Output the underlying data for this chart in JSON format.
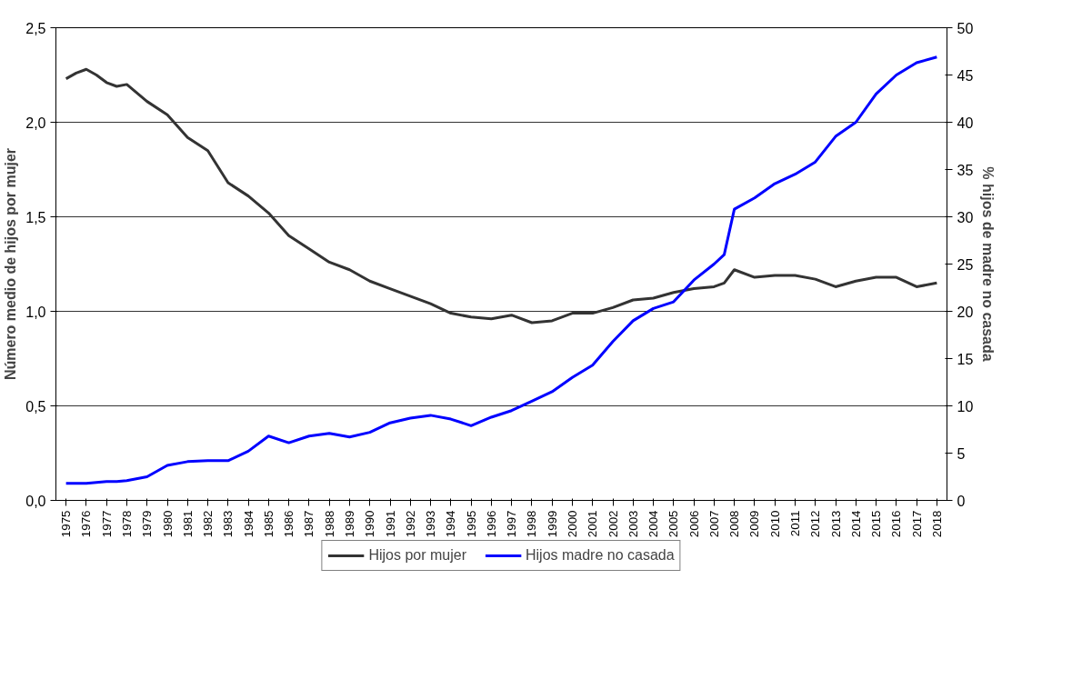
{
  "chart_data": {
    "type": "line",
    "ylabel": "Número medio de hijos por mujer",
    "y2label": "% hijos de madre no casada",
    "x": [
      1975,
      1975.5,
      1976,
      1976.5,
      1977,
      1977.5,
      1978,
      1979,
      1980,
      1981,
      1982,
      1983,
      1984,
      1985,
      1986,
      1987,
      1988,
      1989,
      1990,
      1991,
      1992,
      1993,
      1994,
      1995,
      1996,
      1997,
      1998,
      1999,
      2000,
      2001,
      2002,
      2003,
      2004,
      2005,
      2006,
      2007,
      2007.5,
      2008,
      2009,
      2010,
      2011,
      2012,
      2013,
      2014,
      2015,
      2016,
      2017,
      2018
    ],
    "series": [
      {
        "name": "Hijos por mujer",
        "color": "#333333",
        "values": [
          2.23,
          2.26,
          2.28,
          2.25,
          2.21,
          2.19,
          2.2,
          2.11,
          2.04,
          1.92,
          1.85,
          1.68,
          1.61,
          1.52,
          1.4,
          1.33,
          1.26,
          1.22,
          1.16,
          1.12,
          1.08,
          1.04,
          0.99,
          0.97,
          0.96,
          0.98,
          0.94,
          0.95,
          0.99,
          0.99,
          1.02,
          1.06,
          1.07,
          1.1,
          1.12,
          1.13,
          1.15,
          1.22,
          1.18,
          1.19,
          1.19,
          1.17,
          1.13,
          1.16,
          1.18,
          1.18,
          1.13,
          1.15
        ]
      },
      {
        "name": "Hijos madre no casada",
        "color": "#0000ff",
        "axis": "y2",
        "values": [
          1.8,
          1.8,
          1.8,
          1.9,
          2.0,
          2.0,
          2.1,
          2.5,
          3.7,
          4.1,
          4.2,
          4.2,
          5.2,
          6.8,
          6.1,
          6.8,
          7.1,
          6.7,
          7.2,
          8.2,
          8.7,
          9.0,
          8.6,
          7.9,
          8.8,
          9.5,
          10.5,
          11.5,
          13.0,
          14.3,
          16.8,
          19.0,
          20.3,
          21.0,
          23.3,
          25.0,
          26.0,
          30.8,
          32.0,
          33.5,
          34.5,
          35.8,
          38.5,
          40.0,
          43.0,
          45.0,
          46.3,
          46.9
        ]
      }
    ],
    "xlim": [
      1974.5,
      2018.5
    ],
    "xticks": [
      1975,
      1976,
      1977,
      1978,
      1979,
      1980,
      1981,
      1982,
      1983,
      1984,
      1985,
      1986,
      1987,
      1988,
      1989,
      1990,
      1991,
      1992,
      1993,
      1994,
      1995,
      1996,
      1997,
      1998,
      1999,
      2000,
      2001,
      2002,
      2003,
      2004,
      2005,
      2006,
      2007,
      2008,
      2009,
      2010,
      2011,
      2012,
      2013,
      2014,
      2015,
      2016,
      2017,
      2018
    ],
    "ylim": [
      0,
      2.5
    ],
    "yticks": [
      {
        "value": 0,
        "label": "0,0"
      },
      {
        "value": 0.5,
        "label": "0,5"
      },
      {
        "value": 1,
        "label": "1,0"
      },
      {
        "value": 1.5,
        "label": "1,5"
      },
      {
        "value": 2,
        "label": "2,0"
      },
      {
        "value": 2.5,
        "label": "2,5"
      }
    ],
    "y2lim": [
      0,
      50
    ],
    "y2ticks": [
      0,
      5,
      10,
      15,
      20,
      25,
      30,
      35,
      40,
      45,
      50
    ],
    "grid": "y",
    "legend": "bottom",
    "marker": "none",
    "line_style": "solid"
  }
}
